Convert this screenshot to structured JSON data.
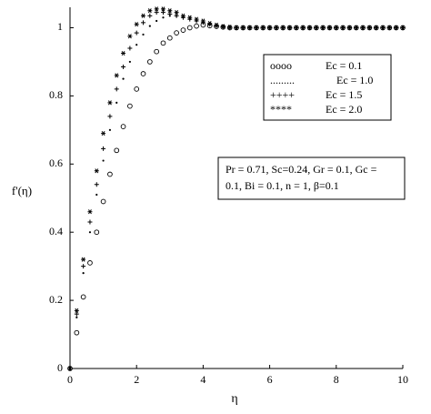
{
  "chart_data": {
    "type": "scatter",
    "x_label": "η",
    "y_label": "f'(η)",
    "x": [
      0,
      0.2,
      0.4,
      0.6,
      0.8,
      1.0,
      1.2,
      1.4,
      1.6,
      1.8,
      2.0,
      2.2,
      2.4,
      2.6,
      2.8,
      3.0,
      3.2,
      3.4,
      3.6,
      3.8,
      4.0,
      4.2,
      4.4,
      4.6,
      4.8,
      5.0,
      5.2,
      5.4,
      5.6,
      5.8,
      6.0,
      6.2,
      6.4,
      6.6,
      6.8,
      7.0,
      7.2,
      7.4,
      7.6,
      7.8,
      8.0,
      8.2,
      8.4,
      8.6,
      8.8,
      9.0,
      9.2,
      9.4,
      9.6,
      9.8,
      10.0
    ],
    "series": [
      {
        "name": "Ec = 0.1",
        "marker": "oooo",
        "color": "#000000",
        "values": [
          0,
          0.105,
          0.21,
          0.31,
          0.4,
          0.49,
          0.57,
          0.64,
          0.71,
          0.77,
          0.82,
          0.865,
          0.9,
          0.93,
          0.955,
          0.97,
          0.985,
          0.993,
          1.0,
          1.005,
          1.008,
          1.006,
          1.004,
          1.002,
          1.0,
          1,
          1,
          1,
          1,
          1,
          1,
          1,
          1,
          1,
          1,
          1,
          1,
          1,
          1,
          1,
          1,
          1,
          1,
          1,
          1,
          1,
          1,
          1,
          1,
          1,
          1
        ]
      },
      {
        "name": "Ec = 1.0",
        "marker": ".........",
        "color": "#000000",
        "values": [
          0,
          0.15,
          0.28,
          0.4,
          0.51,
          0.61,
          0.7,
          0.78,
          0.85,
          0.9,
          0.95,
          0.98,
          1.005,
          1.02,
          1.03,
          1.035,
          1.035,
          1.03,
          1.025,
          1.02,
          1.015,
          1.01,
          1.005,
          1.003,
          1.001,
          1,
          1,
          1,
          1,
          1,
          1,
          1,
          1,
          1,
          1,
          1,
          1,
          1,
          1,
          1,
          1,
          1,
          1,
          1,
          1,
          1,
          1,
          1,
          1,
          1,
          1
        ]
      },
      {
        "name": "Ec = 1.5",
        "marker": "++++",
        "color": "#000000",
        "values": [
          0,
          0.16,
          0.3,
          0.43,
          0.54,
          0.645,
          0.74,
          0.82,
          0.885,
          0.94,
          0.985,
          1.015,
          1.035,
          1.045,
          1.045,
          1.04,
          1.035,
          1.03,
          1.025,
          1.02,
          1.015,
          1.01,
          1.006,
          1.003,
          1.001,
          1,
          1,
          1,
          1,
          1,
          1,
          1,
          1,
          1,
          1,
          1,
          1,
          1,
          1,
          1,
          1,
          1,
          1,
          1,
          1,
          1,
          1,
          1,
          1,
          1,
          1
        ]
      },
      {
        "name": "Ec = 2.0",
        "marker": "****",
        "color": "#000000",
        "values": [
          0,
          0.17,
          0.32,
          0.46,
          0.58,
          0.69,
          0.78,
          0.86,
          0.925,
          0.975,
          1.01,
          1.035,
          1.05,
          1.055,
          1.055,
          1.05,
          1.045,
          1.035,
          1.03,
          1.025,
          1.02,
          1.013,
          1.008,
          1.004,
          1.002,
          1,
          1,
          1,
          1,
          1,
          1,
          1,
          1,
          1,
          1,
          1,
          1,
          1,
          1,
          1,
          1,
          1,
          1,
          1,
          1,
          1,
          1,
          1,
          1,
          1,
          1
        ]
      }
    ],
    "annotation": [
      "Pr = 0.71, Sc=0.24, Gr = 0.1, Gc =",
      "0.1, Bi = 0.1, n = 1, β=0.1"
    ],
    "xlim": [
      0,
      10
    ],
    "xticks": [
      0,
      2,
      4,
      6,
      8,
      10
    ],
    "ylim": [
      0,
      1.06
    ],
    "yticks": [
      0,
      0.2,
      0.4,
      0.6,
      0.8,
      1
    ]
  }
}
